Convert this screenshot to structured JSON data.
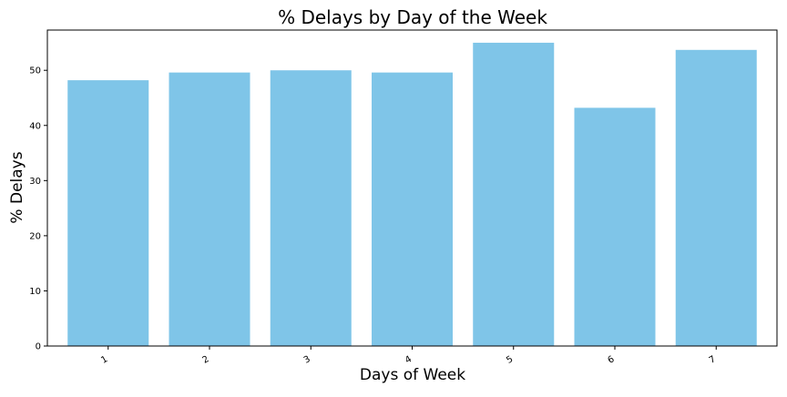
{
  "chart_data": {
    "type": "bar",
    "title": "% Delays by Day of the Week",
    "xlabel": "Days of Week",
    "ylabel": "% Delays",
    "categories": [
      "1",
      "2",
      "3",
      "4",
      "5",
      "6",
      "7"
    ],
    "values": [
      48.2,
      49.6,
      50.0,
      49.6,
      55.0,
      43.2,
      53.7
    ],
    "ylim": [
      0,
      57.3
    ],
    "yticks": [
      "0",
      "10",
      "20",
      "30",
      "40",
      "50"
    ],
    "bar_color": "#7fc5e8",
    "grid": false,
    "x_tick_rotation": "rotated"
  }
}
